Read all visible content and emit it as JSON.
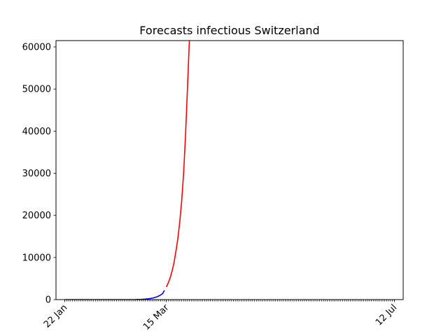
{
  "chart_data": {
    "type": "line",
    "title": "Forecasts infectious Switzerland",
    "xlabel": "",
    "ylabel": "",
    "x_axis": {
      "type": "date",
      "start": "2020-01-22",
      "end": "2020-07-12",
      "tick_labels": [
        {
          "date": "2020-01-22",
          "label": "22 Jan"
        },
        {
          "date": "2020-03-15",
          "label": "15 Mar"
        },
        {
          "date": "2020-07-12",
          "label": "12 Jul"
        }
      ],
      "minor_ticks": "daily"
    },
    "ylim": [
      0,
      61500
    ],
    "yticks": [
      0,
      10000,
      20000,
      30000,
      40000,
      50000,
      60000
    ],
    "grid": false,
    "series": [
      {
        "color": "#0000ff",
        "points": [
          {
            "x": "2020-01-22",
            "y": 0
          },
          {
            "x": "2020-02-10",
            "y": 0
          },
          {
            "x": "2020-02-24",
            "y": 0
          },
          {
            "x": "2020-02-28",
            "y": 15
          },
          {
            "x": "2020-03-02",
            "y": 60
          },
          {
            "x": "2020-03-04",
            "y": 120
          },
          {
            "x": "2020-03-06",
            "y": 220
          },
          {
            "x": "2020-03-08",
            "y": 370
          },
          {
            "x": "2020-03-10",
            "y": 650
          },
          {
            "x": "2020-03-11",
            "y": 850
          },
          {
            "x": "2020-03-12",
            "y": 1100
          },
          {
            "x": "2020-03-13",
            "y": 1400
          },
          {
            "x": "2020-03-14",
            "y": 2200
          }
        ]
      },
      {
        "color": "#ff0000",
        "points": [
          {
            "x": "2020-03-15",
            "y": 3000
          },
          {
            "x": "2020-03-16",
            "y": 4000
          },
          {
            "x": "2020-03-17",
            "y": 5200
          },
          {
            "x": "2020-03-18",
            "y": 6800
          },
          {
            "x": "2020-03-19",
            "y": 8800
          },
          {
            "x": "2020-03-20",
            "y": 11500
          },
          {
            "x": "2020-03-21",
            "y": 14500
          },
          {
            "x": "2020-03-22",
            "y": 18500
          },
          {
            "x": "2020-03-23",
            "y": 23500
          },
          {
            "x": "2020-03-24",
            "y": 30000
          },
          {
            "x": "2020-03-25",
            "y": 39000
          },
          {
            "x": "2020-03-26",
            "y": 50000
          },
          {
            "x": "2020-03-27",
            "y": 61500
          }
        ]
      }
    ]
  }
}
